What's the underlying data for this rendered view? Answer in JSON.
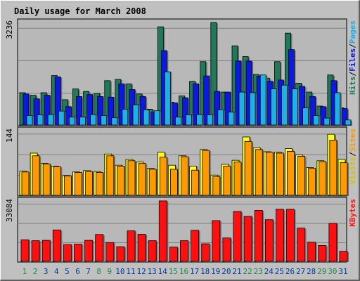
{
  "colors": {
    "hits": "#1f7a5a",
    "files": "#0a1ae0",
    "pages": "#20b0e8",
    "visits": "#ffff20",
    "sites": "#ff9900",
    "kbytes": "#ff1010",
    "title": "#0000cc",
    "panel": "#b8b8b8",
    "grid": "#808080",
    "weekend_label": "#1f8a4a",
    "weekday_label": "#003ca0"
  },
  "chart_data": {
    "type": "bar",
    "title": "Daily usage for March 2008",
    "categories": [
      "1",
      "2",
      "3",
      "4",
      "5",
      "6",
      "7",
      "8",
      "9",
      "10",
      "11",
      "12",
      "13",
      "14",
      "15",
      "16",
      "17",
      "18",
      "19",
      "20",
      "21",
      "22",
      "23",
      "24",
      "25",
      "26",
      "27",
      "28",
      "29",
      "30",
      "31"
    ],
    "weekend_days": [
      "1",
      "2",
      "8",
      "9",
      "15",
      "16",
      "22",
      "23",
      "29",
      "30"
    ],
    "panels": [
      {
        "id": "top",
        "y_max_label": "3236",
        "ylim": [
          0,
          3236
        ],
        "series": [
          {
            "name": "Hits",
            "values": [
              1020,
              940,
              1020,
              1560,
              800,
              1140,
              1060,
              1000,
              1400,
              1440,
              1300,
              980,
              500,
              3100,
              720,
              920,
              1380,
              2000,
              3236,
              1040,
              2500,
              2160,
              1600,
              1480,
              2000,
              2900,
              1320,
              1040,
              600,
              1580,
              540
            ]
          },
          {
            "name": "Files",
            "values": [
              980,
              830,
              940,
              1520,
              580,
              900,
              960,
              900,
              880,
              1300,
              1120,
              900,
              400,
              2350,
              700,
              860,
              1300,
              1550,
              1060,
              1040,
              2020,
              2020,
              1540,
              1380,
              1420,
              2380,
              1220,
              900,
              580,
              1400,
              520
            ]
          },
          {
            "name": "Pages",
            "values": [
              300,
              320,
              330,
              440,
              250,
              250,
              330,
              300,
              230,
              500,
              640,
              480,
              450,
              1680,
              250,
              320,
              330,
              320,
              480,
              410,
              1040,
              1020,
              1580,
              1140,
              1260,
              1140,
              540,
              300,
              220,
              1020,
              160
            ]
          }
        ]
      },
      {
        "id": "middle",
        "y_max_label": "144",
        "ylim": [
          0,
          144
        ],
        "series": [
          {
            "name": "Visits",
            "values": [
              54,
              94,
              71,
              65,
              44,
              52,
              55,
              53,
              92,
              67,
              80,
              74,
              60,
              96,
              67,
              88,
              65,
              102,
              45,
              69,
              78,
              130,
              106,
              97,
              96,
              104,
              90,
              62,
              77,
              136,
              80
            ]
          },
          {
            "name": "Sites",
            "values": [
              52,
              88,
              70,
              64,
              43,
              51,
              53,
              51,
              88,
              65,
              77,
              71,
              58,
              85,
              58,
              86,
              56,
              100,
              42,
              65,
              74,
              120,
              102,
              96,
              94,
              98,
              87,
              60,
              75,
              123,
              73
            ]
          }
        ]
      },
      {
        "id": "bottom",
        "y_max_label": "33084",
        "ylim": [
          0,
          33084
        ],
        "series": [
          {
            "name": "KBytes",
            "values": [
              11800,
              11300,
              11500,
              17200,
              9200,
              9400,
              11500,
              14700,
              10300,
              8000,
              16700,
              14800,
              11300,
              33084,
              7800,
              11300,
              17000,
              9600,
              22300,
              12800,
              27300,
              24600,
              27900,
              22800,
              28500,
              28500,
              18200,
              10500,
              8700,
              20800,
              5500
            ]
          }
        ]
      }
    ],
    "legend": {
      "top": [
        "Hits",
        "Files",
        "Pages"
      ],
      "middle": [
        "Visits",
        "Sites"
      ],
      "bottom": [
        "KBytes"
      ],
      "separator": "/",
      "placement": "right, vertical"
    },
    "grid": true
  }
}
